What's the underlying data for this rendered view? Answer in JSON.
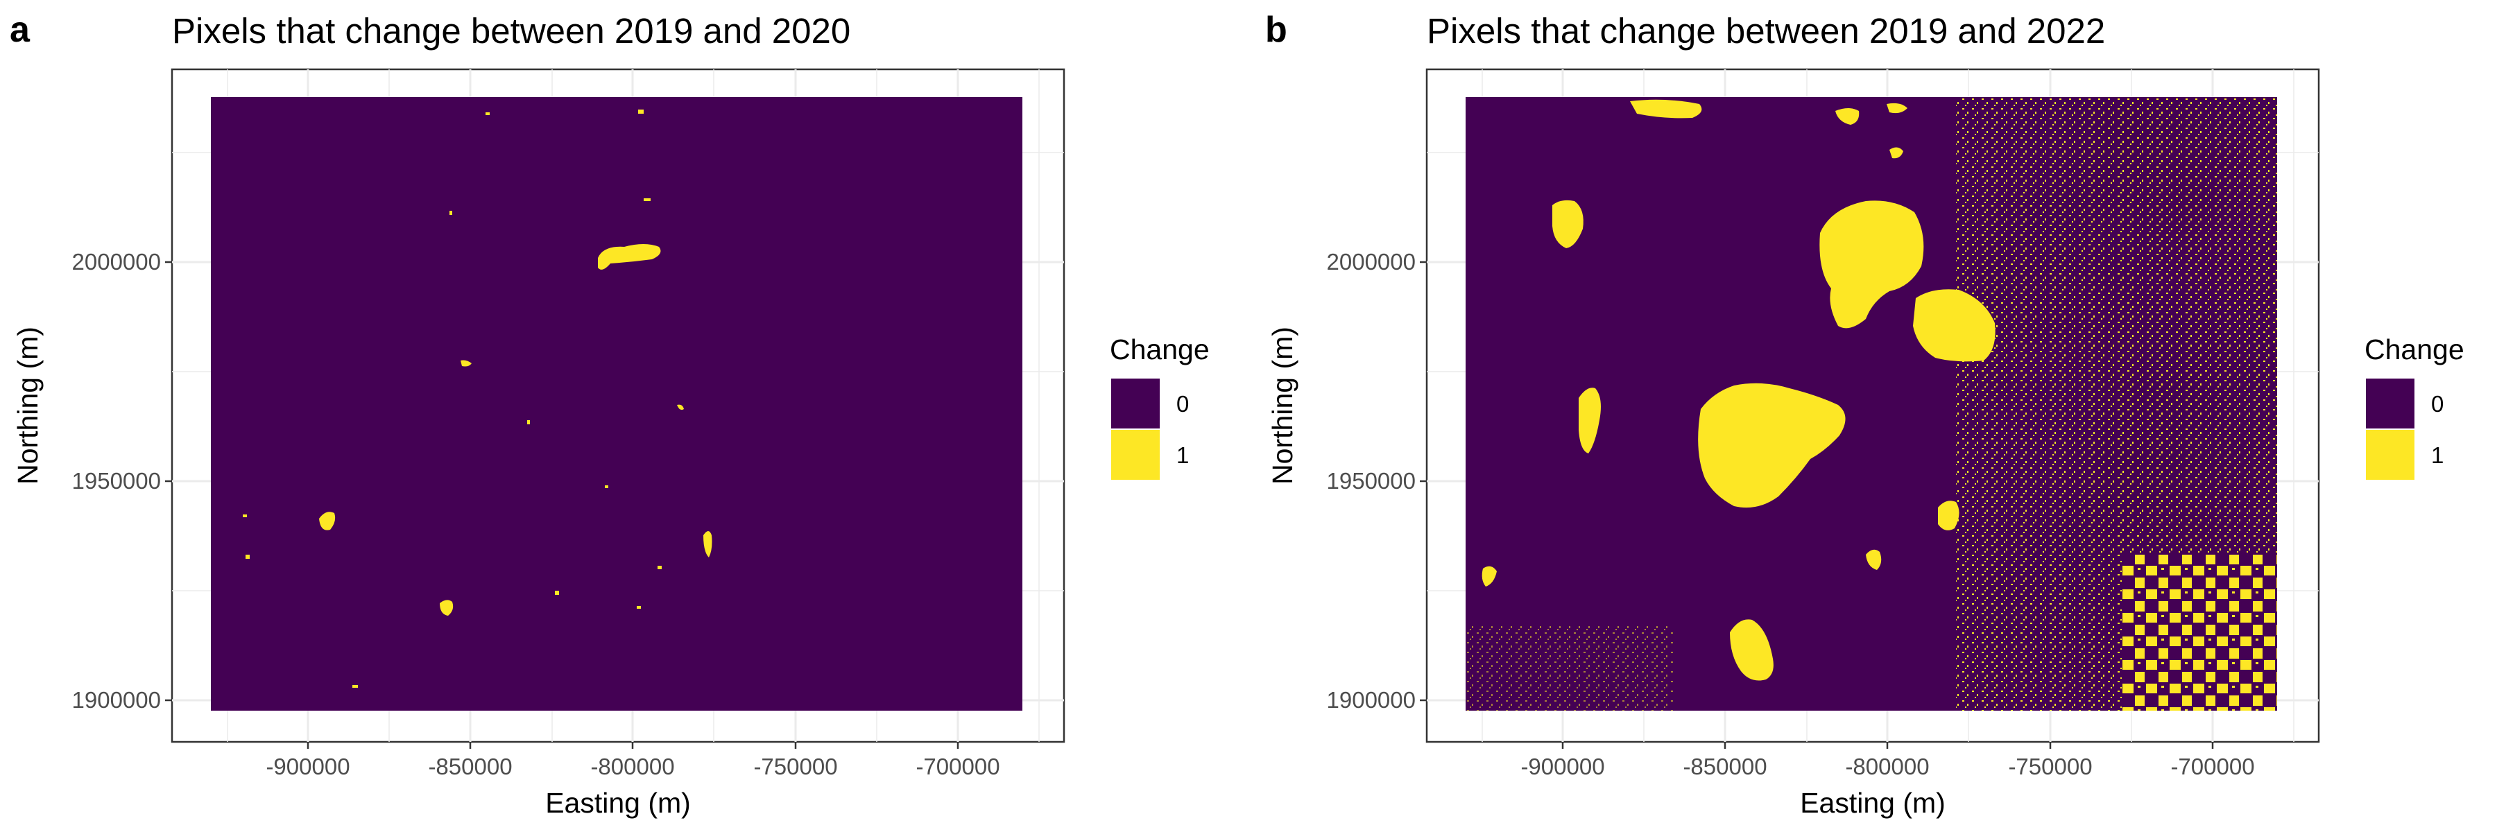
{
  "chart_data": [
    {
      "type": "heatmap",
      "panel_tag": "a",
      "title": "Pixels that change between 2019 and 2020",
      "xlabel": "Easting (m)",
      "ylabel": "Northing (m)",
      "xlim": [
        -945000,
        -683000
      ],
      "ylim": [
        1890000,
        2037000
      ],
      "raster_extent": {
        "x": [
          -932000,
          -693000
        ],
        "y": [
          1897000,
          2037000
        ]
      },
      "x_ticks": [
        -900000,
        -850000,
        -800000,
        -750000,
        -700000
      ],
      "x_tick_labels": [
        "-900000",
        "-850000",
        "-800000",
        "-750000",
        "-700000"
      ],
      "y_ticks": [
        1900000,
        1950000,
        2000000
      ],
      "y_tick_labels": [
        "1900000",
        "1950000",
        "2000000"
      ],
      "grid": true,
      "legend": {
        "title": "Change",
        "placement": "right",
        "entries": [
          {
            "label": "0",
            "color": "#440154"
          },
          {
            "label": "1",
            "color": "#fde725"
          }
        ]
      },
      "change_fraction_estimate": 0.01,
      "change_regions": [
        {
          "x": -811000,
          "y": 2001000,
          "rx": 5000,
          "ry": 2500
        },
        {
          "x": -860000,
          "y": 1922000,
          "rx": 1500,
          "ry": 1800
        },
        {
          "x": -783000,
          "y": 1936000,
          "rx": 900,
          "ry": 2500
        },
        {
          "x": -893000,
          "y": 1940000,
          "rx": 1600,
          "ry": 2000
        },
        {
          "x": -793000,
          "y": 1967000,
          "rx": 800,
          "ry": 1000
        },
        {
          "x": -853000,
          "y": 1978000,
          "rx": 1800,
          "ry": 1500
        },
        {
          "x": -858000,
          "y": 1990000,
          "rx": 400,
          "ry": 600
        }
      ]
    },
    {
      "type": "heatmap",
      "panel_tag": "b",
      "title": "Pixels that change between 2019 and 2022",
      "xlabel": "Easting (m)",
      "ylabel": "Northing (m)",
      "xlim": [
        -945000,
        -683000
      ],
      "ylim": [
        1890000,
        2037000
      ],
      "raster_extent": {
        "x": [
          -932000,
          -693000
        ],
        "y": [
          1897000,
          2037000
        ]
      },
      "x_ticks": [
        -900000,
        -850000,
        -800000,
        -750000,
        -700000
      ],
      "x_tick_labels": [
        "-900000",
        "-850000",
        "-800000",
        "-750000",
        "-700000"
      ],
      "y_ticks": [
        1900000,
        1950000,
        2000000
      ],
      "y_tick_labels": [
        "1900000",
        "1950000",
        "2000000"
      ],
      "grid": true,
      "legend": {
        "title": "Change",
        "placement": "right",
        "entries": [
          {
            "label": "0",
            "color": "#440154"
          },
          {
            "label": "1",
            "color": "#fde725"
          }
        ]
      },
      "change_fraction_estimate": 0.2,
      "change_regions": [
        {
          "x": -850000,
          "y": 1960000,
          "rx": 12000,
          "ry": 11000
        },
        {
          "x": -809000,
          "y": 1996000,
          "rx": 12000,
          "ry": 11000
        },
        {
          "x": -787000,
          "y": 1985000,
          "rx": 8000,
          "ry": 6000
        },
        {
          "x": -919000,
          "y": 2008000,
          "rx": 3500,
          "ry": 3500
        },
        {
          "x": -912000,
          "y": 1960000,
          "rx": 2500,
          "ry": 5000
        },
        {
          "x": -849000,
          "y": 1913000,
          "rx": 4500,
          "ry": 6000
        },
        {
          "x": -775000,
          "y": 1935000,
          "rx": 3000,
          "ry": 4000
        },
        {
          "x": -820000,
          "y": 1929000,
          "rx": 2500,
          "ry": 3000
        },
        {
          "x": -840000,
          "y": 2030000,
          "rx": 8000,
          "ry": 3000
        }
      ]
    }
  ]
}
